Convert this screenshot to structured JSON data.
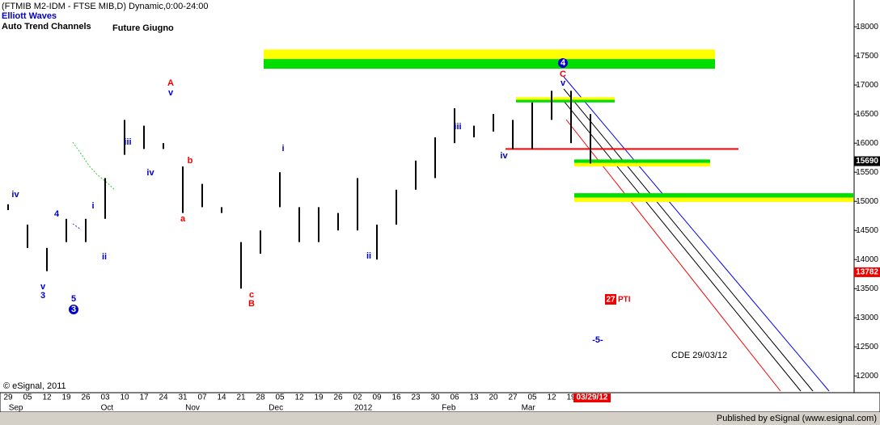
{
  "chart_data": {
    "type": "ohlc",
    "header": "(FTMIB M2-IDM - FTSE MIB,D) Dynamic,0:00-24:00",
    "study_1": "Elliott Waves",
    "study_2": "Auto Trend Channels",
    "title": "Future Giugno",
    "footnote": "CDE 29/03/12",
    "copyright": "© eSignal, 2011",
    "publisher": "Published by eSignal (www.esignal.com)",
    "categories": [
      "29",
      "05",
      "12",
      "19",
      "26",
      "03",
      "10",
      "17",
      "24",
      "31",
      "07",
      "14",
      "21",
      "28",
      "05",
      "12",
      "19",
      "26",
      "02",
      "09",
      "16",
      "23",
      "30",
      "06",
      "13",
      "20",
      "27",
      "05",
      "12",
      "19",
      "03/29/12"
    ],
    "months": [
      "Sep",
      "Oct",
      "Nov",
      "Dec",
      "2012",
      "Feb",
      "Mar"
    ],
    "high": [
      14950,
      14600,
      14200,
      14700,
      14700,
      15400,
      16400,
      16300,
      16000,
      15600,
      15300,
      14900,
      14300,
      14500,
      15500,
      14900,
      14900,
      14800,
      15400,
      14600,
      15200,
      15700,
      16100,
      16600,
      16300,
      16500,
      16400,
      16700,
      16900,
      16900,
      16500
    ],
    "low": [
      14850,
      14200,
      13800,
      14300,
      14300,
      14700,
      15800,
      15900,
      15900,
      14800,
      14900,
      14800,
      13500,
      14100,
      14900,
      14300,
      14300,
      14500,
      14500,
      14000,
      14600,
      15200,
      15400,
      16000,
      16100,
      16200,
      15900,
      15900,
      16400,
      16000,
      15650
    ],
    "color": "#000000",
    "ylim": [
      11740,
      18460
    ],
    "yticks": [
      12000,
      12500,
      13000,
      13500,
      14000,
      14500,
      15000,
      15500,
      16000,
      16500,
      17000,
      17500,
      18000
    ],
    "zones": [
      {
        "top": 17610,
        "bottom": 17280,
        "upper_color": "#ffff00",
        "lower_color": "#00dd00"
      },
      {
        "top": 16790,
        "bottom": 16700,
        "upper_color": "#ffff00",
        "lower_color": "#00dd00"
      },
      {
        "top": 15720,
        "bottom": 15600,
        "upper_color": "#00dd00",
        "lower_color": "#ffff00"
      },
      {
        "top": 15140,
        "bottom": 14990,
        "upper_color": "#00dd00",
        "lower_color": "#ffff00"
      }
    ],
    "support_line": {
      "value": 15900,
      "color": "#ff0000"
    },
    "price_badges": [
      {
        "value": 15690,
        "color": "#000000"
      },
      {
        "value": 13782,
        "color": "#ee0000"
      }
    ],
    "pti": {
      "value": 27,
      "label": "PTI"
    },
    "annotations": [
      {
        "text": "iv",
        "color": "#0000cc"
      },
      {
        "text": "4",
        "color": "#0000cc"
      },
      {
        "text": "i",
        "color": "#0000cc"
      },
      {
        "text": "ii",
        "color": "#0000cc"
      },
      {
        "text": "v",
        "color": "#0000cc"
      },
      {
        "text": "3",
        "color": "#0000cc"
      },
      {
        "text": "5",
        "color": "#0000cc"
      },
      {
        "text": "3",
        "color": "#0000cc",
        "circled": true
      },
      {
        "text": "iii",
        "color": "#0000cc"
      },
      {
        "text": "iv",
        "color": "#0000cc"
      },
      {
        "text": "A",
        "color": "#ee0000"
      },
      {
        "text": "v",
        "color": "#0000cc"
      },
      {
        "text": "b",
        "color": "#ee0000"
      },
      {
        "text": "a",
        "color": "#ee0000"
      },
      {
        "text": "c",
        "color": "#ee0000"
      },
      {
        "text": "B",
        "color": "#ee0000"
      },
      {
        "text": "i",
        "color": "#0000cc"
      },
      {
        "text": "ii",
        "color": "#0000cc"
      },
      {
        "text": "iii",
        "color": "#0000cc"
      },
      {
        "text": "iv",
        "color": "#0000cc"
      },
      {
        "text": "4",
        "color": "#0000cc",
        "circled": true
      },
      {
        "text": "C",
        "color": "#ee0000"
      },
      {
        "text": "v",
        "color": "#0000cc"
      },
      {
        "text": "-5-",
        "color": "#0000cc"
      }
    ]
  }
}
